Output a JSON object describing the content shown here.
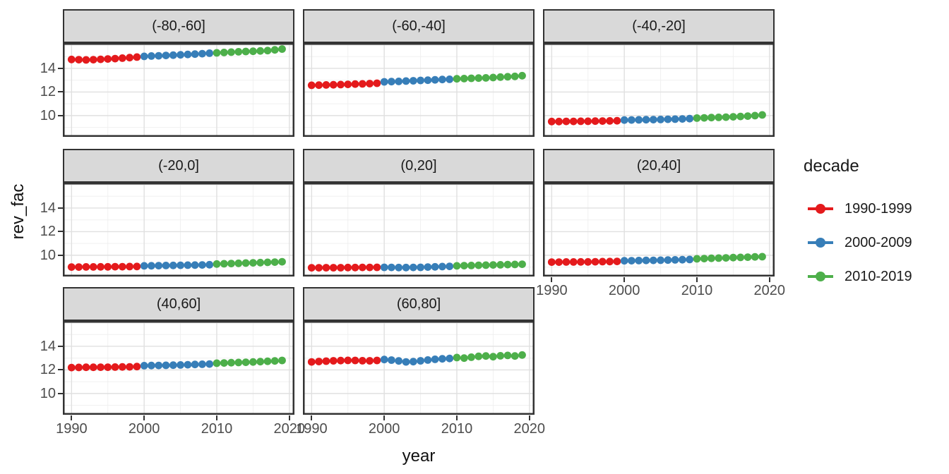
{
  "style": {
    "background": "#FFFFFF",
    "panel_border": "#333333",
    "strip_fill": "#D9D9D9",
    "grid_major": "#E0E0E0",
    "grid_minor": "#F0F0F0",
    "tick_label_color": "#4D4D4D",
    "text_color": "#1A1A1A"
  },
  "chart_data": {
    "type": "scatter",
    "title": "",
    "xlabel": "year",
    "ylabel": "rev_fac",
    "grid": true,
    "legend_position": "right",
    "x_range": [
      1988.8,
      2020.7
    ],
    "y_range": [
      8.2,
      16.15
    ],
    "x_ticks": [
      1990,
      2000,
      2010,
      2020
    ],
    "x_tick_labels": [
      "1990",
      "2000",
      "2010",
      "2020"
    ],
    "y_ticks": [
      14,
      12,
      10
    ],
    "y_tick_labels": [
      "14",
      "12",
      "10"
    ],
    "x_grid_major": [
      1990,
      2000,
      2010,
      2020
    ],
    "x_grid_minor": [
      1995,
      2005,
      2015
    ],
    "y_grid_major": [
      10,
      12,
      14,
      16
    ],
    "y_grid_minor": [
      9,
      11,
      13,
      15
    ],
    "legend": {
      "title": "decade",
      "entries": [
        {
          "label": "1990-1999",
          "color": "#E41A1C"
        },
        {
          "label": "2000-2009",
          "color": "#377EB8"
        },
        {
          "label": "2010-2019",
          "color": "#4DAF4A"
        }
      ]
    },
    "decades": [
      {
        "label": "1990-1999",
        "years": [
          1990,
          1999
        ],
        "color": "#E41A1C"
      },
      {
        "label": "2000-2009",
        "years": [
          2000,
          2009
        ],
        "color": "#377EB8"
      },
      {
        "label": "2010-2019",
        "years": [
          2010,
          2019
        ],
        "color": "#4DAF4A"
      }
    ],
    "years": [
      1990,
      1991,
      1992,
      1993,
      1994,
      1995,
      1996,
      1997,
      1998,
      1999,
      2000,
      2001,
      2002,
      2003,
      2004,
      2005,
      2006,
      2007,
      2008,
      2009,
      2010,
      2011,
      2012,
      2013,
      2014,
      2015,
      2016,
      2017,
      2018,
      2019
    ],
    "facets": [
      {
        "label": "(-80,-60]",
        "values": [
          14.76,
          14.74,
          14.72,
          14.74,
          14.77,
          14.8,
          14.83,
          14.87,
          14.91,
          14.96,
          15.02,
          15.05,
          15.07,
          15.1,
          15.12,
          15.15,
          15.18,
          15.21,
          15.25,
          15.29,
          15.32,
          15.35,
          15.38,
          15.41,
          15.43,
          15.45,
          15.48,
          15.51,
          15.57,
          15.64
        ]
      },
      {
        "label": "(-60,-40]",
        "values": [
          12.57,
          12.58,
          12.6,
          12.61,
          12.63,
          12.65,
          12.67,
          12.69,
          12.71,
          12.74,
          12.86,
          12.88,
          12.9,
          12.93,
          12.95,
          12.98,
          13.0,
          13.03,
          13.06,
          13.08,
          13.12,
          13.14,
          13.16,
          13.18,
          13.2,
          13.23,
          13.26,
          13.29,
          13.32,
          13.38
        ]
      },
      {
        "label": "(-40,-20]",
        "values": [
          9.5,
          9.5,
          9.51,
          9.51,
          9.52,
          9.52,
          9.53,
          9.54,
          9.55,
          9.56,
          9.62,
          9.63,
          9.64,
          9.65,
          9.66,
          9.67,
          9.69,
          9.7,
          9.72,
          9.74,
          9.79,
          9.81,
          9.83,
          9.85,
          9.87,
          9.9,
          9.93,
          9.96,
          10.0,
          10.06
        ]
      },
      {
        "label": "(-20,0]",
        "values": [
          9.0,
          9.0,
          9.01,
          9.01,
          9.02,
          9.02,
          9.03,
          9.03,
          9.04,
          9.05,
          9.1,
          9.11,
          9.12,
          9.13,
          9.14,
          9.15,
          9.16,
          9.17,
          9.18,
          9.2,
          9.26,
          9.28,
          9.3,
          9.32,
          9.34,
          9.36,
          9.38,
          9.4,
          9.42,
          9.45
        ]
      },
      {
        "label": "(0,20]",
        "values": [
          8.94,
          8.94,
          8.95,
          8.95,
          8.95,
          8.96,
          8.96,
          8.97,
          8.97,
          8.98,
          8.98,
          8.97,
          8.96,
          8.96,
          8.97,
          8.98,
          9.0,
          9.02,
          9.04,
          9.06,
          9.1,
          9.12,
          9.13,
          9.15,
          9.16,
          9.18,
          9.19,
          9.21,
          9.22,
          9.24
        ]
      },
      {
        "label": "(20,40]",
        "values": [
          9.42,
          9.42,
          9.43,
          9.43,
          9.44,
          9.44,
          9.45,
          9.46,
          9.47,
          9.48,
          9.53,
          9.54,
          9.55,
          9.56,
          9.57,
          9.58,
          9.59,
          9.61,
          9.62,
          9.64,
          9.7,
          9.72,
          9.74,
          9.76,
          9.78,
          9.8,
          9.82,
          9.84,
          9.86,
          9.88
        ]
      },
      {
        "label": "(40,60]",
        "values": [
          12.2,
          12.21,
          12.22,
          12.22,
          12.23,
          12.23,
          12.24,
          12.25,
          12.26,
          12.28,
          12.36,
          12.37,
          12.38,
          12.39,
          12.4,
          12.42,
          12.44,
          12.46,
          12.48,
          12.5,
          12.57,
          12.59,
          12.61,
          12.63,
          12.65,
          12.67,
          12.7,
          12.73,
          12.76,
          12.8
        ]
      },
      {
        "label": "(60,80]",
        "values": [
          12.68,
          12.71,
          12.74,
          12.77,
          12.79,
          12.81,
          12.8,
          12.78,
          12.77,
          12.8,
          12.88,
          12.83,
          12.76,
          12.68,
          12.7,
          12.77,
          12.84,
          12.9,
          12.94,
          12.97,
          13.05,
          13.0,
          13.08,
          13.15,
          13.18,
          13.12,
          13.2,
          13.23,
          13.18,
          13.26
        ]
      }
    ]
  }
}
